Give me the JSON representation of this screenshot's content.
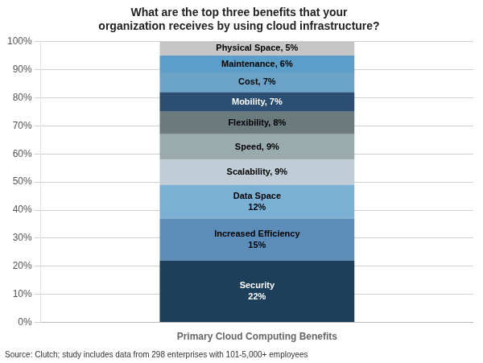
{
  "chart_data": {
    "type": "bar",
    "stacked": true,
    "title": "What are the top three benefits that your\norganization receives by using cloud infrastructure?",
    "categories": [
      "Primary Cloud Computing Benefits"
    ],
    "series": [
      {
        "color": "#1e3f5a",
        "values": [
          22
        ],
        "value_labels": [
          "Security\n22%"
        ]
      },
      {
        "color": "#5b8db8",
        "values": [
          15
        ],
        "value_labels": [
          "Increased Efficiency\n15%"
        ]
      },
      {
        "color": "#7ab0d4",
        "values": [
          12
        ],
        "value_labels": [
          "Data Space\n12%"
        ]
      },
      {
        "color": "#c0cdd6",
        "values": [
          9
        ],
        "value_labels": [
          "Scalability, 9%"
        ]
      },
      {
        "color": "#9aabad",
        "values": [
          9
        ],
        "value_labels": [
          "Speed, 9%"
        ]
      },
      {
        "color": "#6b7b7d",
        "values": [
          8
        ],
        "value_labels": [
          "Flexibility, 8%"
        ]
      },
      {
        "color": "#2b4e72",
        "values": [
          7
        ],
        "value_labels": [
          "Mobility, 7%"
        ]
      },
      {
        "color": "#6ba3c8",
        "values": [
          7
        ],
        "value_labels": [
          "Cost, 7%"
        ]
      },
      {
        "color": "#5b9ec9",
        "values": [
          6
        ],
        "value_labels": [
          "Maintenance, 6%"
        ]
      },
      {
        "color": "#c6c6c6",
        "values": [
          5
        ],
        "value_labels": [
          "Physical Space, 5%"
        ]
      }
    ],
    "data_labels": true,
    "ylim": [
      0,
      100
    ],
    "yticks": [
      {
        "value": 0,
        "label": "0%"
      },
      {
        "value": 10,
        "label": "10%"
      },
      {
        "value": 20,
        "label": "20%"
      },
      {
        "value": 30,
        "label": "30%"
      },
      {
        "value": 40,
        "label": "40%"
      },
      {
        "value": 50,
        "label": "50%"
      },
      {
        "value": 60,
        "label": "60%"
      },
      {
        "value": 70,
        "label": "70%"
      },
      {
        "value": 80,
        "label": "80%"
      },
      {
        "value": 90,
        "label": "90%"
      },
      {
        "value": 100,
        "label": "100%"
      }
    ],
    "grid": true,
    "annotations": [
      "Source: Clutch; study includes data from 298 enterprises with 101-5,000+ employees"
    ]
  }
}
